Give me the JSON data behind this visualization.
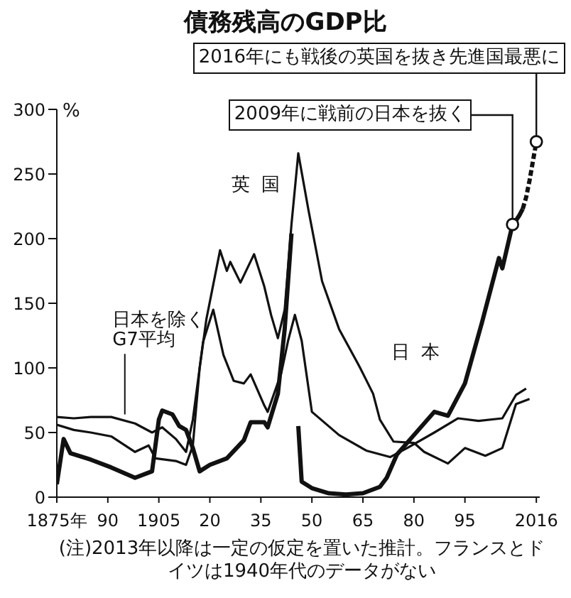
{
  "chart_data": {
    "type": "line",
    "title": "債務残高のGDP比",
    "ylabel": "%",
    "xlim": [
      1875,
      2017
    ],
    "xticks": [
      {
        "value": 1875,
        "label": "1875年"
      },
      {
        "value": 1890,
        "label": "90"
      },
      1905,
      {
        "value": 1920,
        "label": "20"
      },
      {
        "value": 1935,
        "label": "35"
      },
      {
        "value": 1950,
        "label": "50"
      },
      {
        "value": 1965,
        "label": "65"
      },
      {
        "value": 1980,
        "label": "80"
      },
      {
        "value": 1995,
        "label": "95"
      },
      2016
    ],
    "ylim": [
      0,
      300
    ],
    "yticks": [
      0,
      50,
      100,
      150,
      200,
      250,
      300
    ],
    "series": [
      {
        "name": "英国",
        "color": "#111111",
        "line_style": "solid",
        "x": [
          1875,
          1880,
          1885,
          1891,
          1898,
          1902,
          1904,
          1910,
          1913,
          1915,
          1917,
          1919,
          1923,
          1925,
          1926,
          1929,
          1933,
          1936,
          1938,
          1940,
          1942,
          1944,
          1946,
          1949,
          1953,
          1958,
          1964,
          1968,
          1970,
          1974,
          1980,
          1983,
          1990,
          1995,
          2001,
          2006,
          2010,
          2014
        ],
        "values": [
          56,
          52,
          50,
          47,
          35,
          40,
          30,
          28,
          25,
          40,
          100,
          138,
          191,
          175,
          182,
          166,
          188,
          163,
          141,
          123,
          145,
          211,
          266,
          222,
          167,
          130,
          101,
          80,
          60,
          43,
          42,
          35,
          26,
          38,
          32,
          38,
          72,
          76
        ]
      },
      {
        "name": "日本",
        "color": "#111111",
        "line_style": "solid",
        "x": [
          1875,
          1877,
          1879,
          1885,
          1891,
          1898,
          1903,
          1905,
          1906,
          1909,
          1911,
          1913,
          1915,
          1917,
          1920,
          1925,
          1930,
          1932,
          1936,
          1937,
          1940,
          1942,
          1944,
          1945,
          1946,
          1947,
          1950,
          1955,
          1960,
          1965,
          1970,
          1972,
          1975,
          1980,
          1986,
          1990,
          1995,
          2000,
          2005,
          2006,
          2009,
          2010,
          2011,
          2012
        ],
        "values": [
          10,
          45,
          34,
          29,
          23,
          15,
          20,
          60,
          67,
          64,
          55,
          52,
          38,
          20,
          25,
          30,
          44,
          58,
          58,
          54,
          80,
          130,
          204,
          null,
          55,
          12,
          7,
          3,
          2,
          3,
          8,
          15,
          33,
          48,
          66,
          63,
          88,
          135,
          185,
          177,
          211,
          214,
          218,
          223
        ]
      },
      {
        "color": "#111111",
        "line_style": "dashed",
        "x": [
          2012,
          2013,
          2014,
          2015,
          2016
        ],
        "values": [
          223,
          232,
          245,
          260,
          275
        ]
      },
      {
        "name": "日本を除くG7平均",
        "color": "#111111",
        "line_style": "solid",
        "x": [
          1875,
          1880,
          1885,
          1891,
          1898,
          1903,
          1906,
          1910,
          1913,
          1915,
          1918,
          1921,
          1924,
          1927,
          1930,
          1932,
          1936,
          1937,
          1941,
          1943,
          1945,
          1947,
          1950,
          1958,
          1966,
          1973,
          1978,
          1986,
          1993,
          1999,
          2006,
          2010,
          2013
        ],
        "values": [
          62,
          61,
          62,
          62,
          57,
          50,
          54,
          45,
          35,
          60,
          120,
          145,
          110,
          90,
          88,
          95,
          71,
          66,
          96,
          121,
          141,
          121,
          66,
          48,
          36,
          31,
          38,
          50,
          61,
          59,
          61,
          79,
          84
        ]
      }
    ],
    "annotations": [
      {
        "text": "2016年にも戦後の英国を抜き先進国最悪に",
        "x": 2016,
        "y": 275
      },
      {
        "text": "2009年に戦前の日本を抜く",
        "x": 2009,
        "y": 211
      },
      "(注)2013年以降は一定の仮定を置いた推計。フランスとドイツは1940年代のデータがない"
    ]
  }
}
